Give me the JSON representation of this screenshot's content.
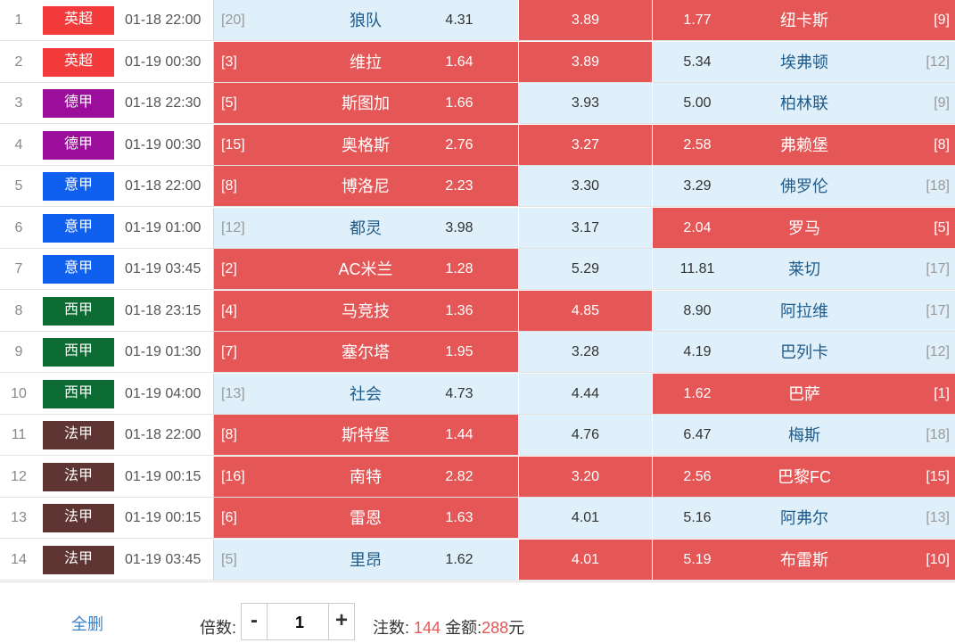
{
  "colors": {
    "英超": "#f33b3b",
    "德甲": "#9b0e9b",
    "意甲": "#1060f0",
    "西甲": "#0b6b32",
    "法甲": "#5e3532"
  },
  "matches": [
    {
      "no": "1",
      "league": "英超",
      "time": "01-18 22:00",
      "home_rank": "[20]",
      "home": "狼队",
      "home_odd": "4.31",
      "draw_odd": "3.89",
      "away_odd": "1.77",
      "away": "纽卡斯",
      "away_rank": "[9]",
      "sel": [
        false,
        true,
        true
      ]
    },
    {
      "no": "2",
      "league": "英超",
      "time": "01-19 00:30",
      "home_rank": "[3]",
      "home": "维拉",
      "home_odd": "1.64",
      "draw_odd": "3.89",
      "away_odd": "5.34",
      "away": "埃弗顿",
      "away_rank": "[12]",
      "sel": [
        true,
        true,
        false
      ]
    },
    {
      "no": "3",
      "league": "德甲",
      "time": "01-18 22:30",
      "home_rank": "[5]",
      "home": "斯图加",
      "home_odd": "1.66",
      "draw_odd": "3.93",
      "away_odd": "5.00",
      "away": "柏林联",
      "away_rank": "[9]",
      "sel": [
        true,
        false,
        false
      ]
    },
    {
      "no": "4",
      "league": "德甲",
      "time": "01-19 00:30",
      "home_rank": "[15]",
      "home": "奥格斯",
      "home_odd": "2.76",
      "draw_odd": "3.27",
      "away_odd": "2.58",
      "away": "弗赖堡",
      "away_rank": "[8]",
      "sel": [
        true,
        true,
        true
      ]
    },
    {
      "no": "5",
      "league": "意甲",
      "time": "01-18 22:00",
      "home_rank": "[8]",
      "home": "博洛尼",
      "home_odd": "2.23",
      "draw_odd": "3.30",
      "away_odd": "3.29",
      "away": "佛罗伦",
      "away_rank": "[18]",
      "sel": [
        true,
        false,
        false
      ]
    },
    {
      "no": "6",
      "league": "意甲",
      "time": "01-19 01:00",
      "home_rank": "[12]",
      "home": "都灵",
      "home_odd": "3.98",
      "draw_odd": "3.17",
      "away_odd": "2.04",
      "away": "罗马",
      "away_rank": "[5]",
      "sel": [
        false,
        false,
        true
      ]
    },
    {
      "no": "7",
      "league": "意甲",
      "time": "01-19 03:45",
      "home_rank": "[2]",
      "home": "AC米兰",
      "home_odd": "1.28",
      "draw_odd": "5.29",
      "away_odd": "11.81",
      "away": "莱切",
      "away_rank": "[17]",
      "sel": [
        true,
        false,
        false
      ]
    },
    {
      "no": "8",
      "league": "西甲",
      "time": "01-18 23:15",
      "home_rank": "[4]",
      "home": "马竞技",
      "home_odd": "1.36",
      "draw_odd": "4.85",
      "away_odd": "8.90",
      "away": "阿拉维",
      "away_rank": "[17]",
      "sel": [
        true,
        true,
        false
      ]
    },
    {
      "no": "9",
      "league": "西甲",
      "time": "01-19 01:30",
      "home_rank": "[7]",
      "home": "塞尔塔",
      "home_odd": "1.95",
      "draw_odd": "3.28",
      "away_odd": "4.19",
      "away": "巴列卡",
      "away_rank": "[12]",
      "sel": [
        true,
        false,
        false
      ]
    },
    {
      "no": "10",
      "league": "西甲",
      "time": "01-19 04:00",
      "home_rank": "[13]",
      "home": "社会",
      "home_odd": "4.73",
      "draw_odd": "4.44",
      "away_odd": "1.62",
      "away": "巴萨",
      "away_rank": "[1]",
      "sel": [
        false,
        false,
        true
      ]
    },
    {
      "no": "11",
      "league": "法甲",
      "time": "01-18 22:00",
      "home_rank": "[8]",
      "home": "斯特堡",
      "home_odd": "1.44",
      "draw_odd": "4.76",
      "away_odd": "6.47",
      "away": "梅斯",
      "away_rank": "[18]",
      "sel": [
        true,
        false,
        false
      ]
    },
    {
      "no": "12",
      "league": "法甲",
      "time": "01-19 00:15",
      "home_rank": "[16]",
      "home": "南特",
      "home_odd": "2.82",
      "draw_odd": "3.20",
      "away_odd": "2.56",
      "away": "巴黎FC",
      "away_rank": "[15]",
      "sel": [
        true,
        true,
        true
      ]
    },
    {
      "no": "13",
      "league": "法甲",
      "time": "01-19 00:15",
      "home_rank": "[6]",
      "home": "雷恩",
      "home_odd": "1.63",
      "draw_odd": "4.01",
      "away_odd": "5.16",
      "away": "阿弗尔",
      "away_rank": "[13]",
      "sel": [
        true,
        false,
        false
      ]
    },
    {
      "no": "14",
      "league": "法甲",
      "time": "01-19 03:45",
      "home_rank": "[5]",
      "home": "里昂",
      "home_odd": "1.62",
      "draw_odd": "4.01",
      "away_odd": "5.19",
      "away": "布雷斯",
      "away_rank": "[10]",
      "sel": [
        false,
        true,
        true
      ]
    }
  ],
  "footer": {
    "clear_label": "全删",
    "multiplier_label": "倍数:",
    "minus": "-",
    "plus": "+",
    "multiplier_value": "1",
    "bets_label": "注数:",
    "bets_value": "144",
    "amount_label": "金额:",
    "amount_value": "288",
    "amount_unit": "元"
  }
}
